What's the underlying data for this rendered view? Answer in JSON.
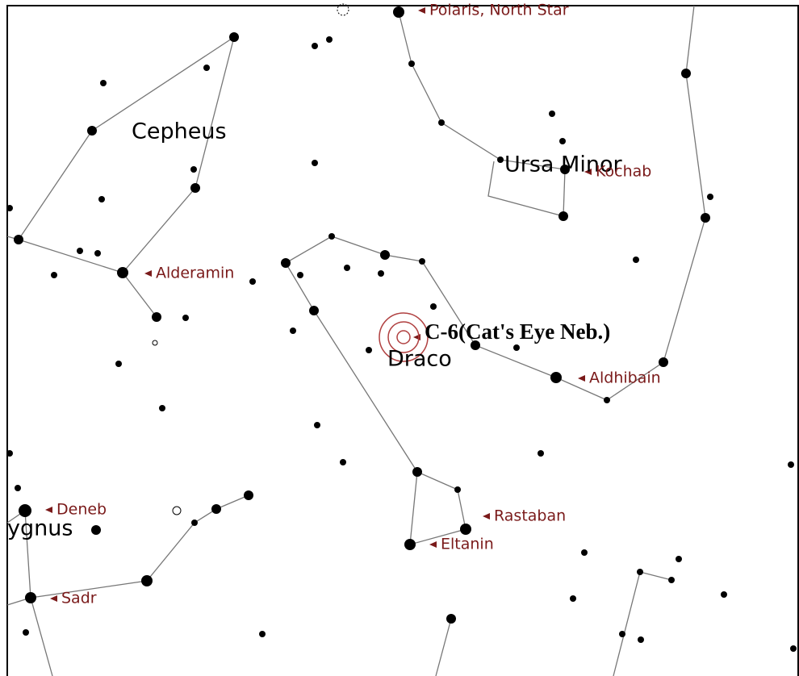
{
  "constellations": [
    "Cepheus",
    "Ursa Minor",
    "Draco",
    "ygnus"
  ],
  "stars": [
    "Polaris, North Star",
    "Kochab",
    "Alderamin",
    "Aldhibain",
    "Deneb",
    "Rastaban",
    "Eltanin",
    "Sadr"
  ],
  "object": "C-6(Cat's Eye Neb.)"
}
